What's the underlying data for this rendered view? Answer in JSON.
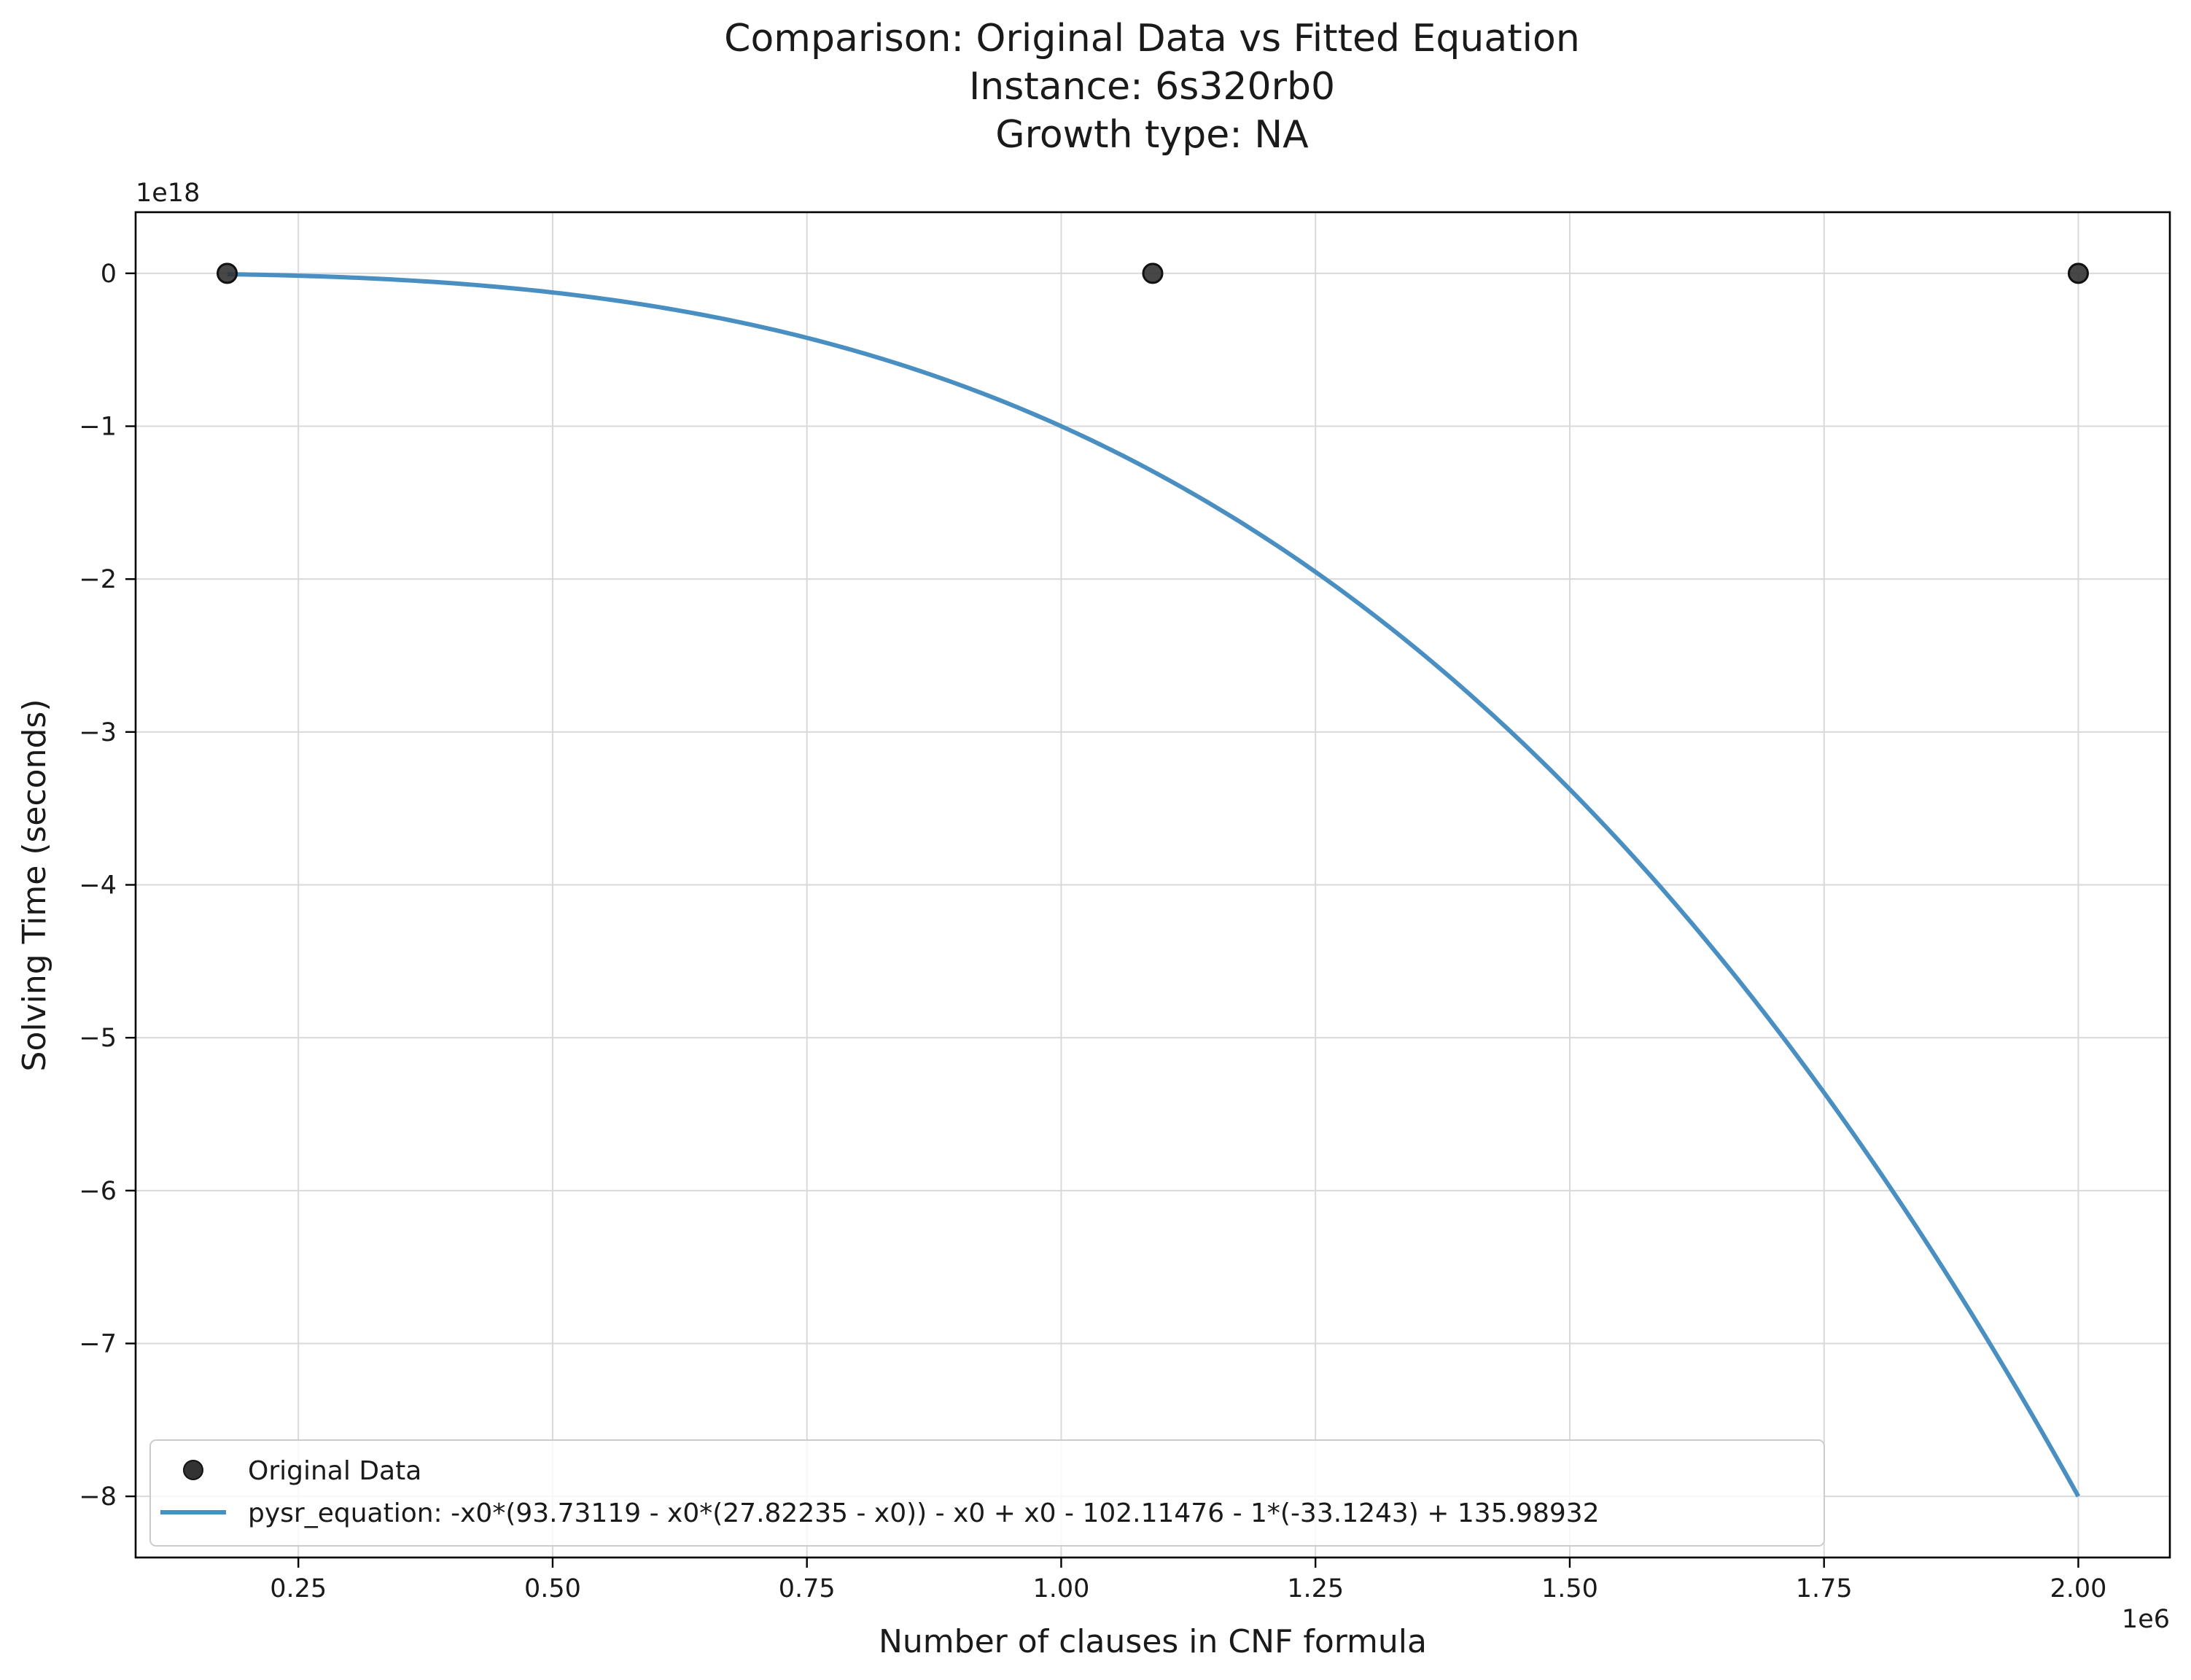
{
  "chart_data": {
    "type": "scatter",
    "title_lines": [
      "Comparison: Original Data vs Fitted Equation",
      "Instance: 6s320rb0",
      "Growth type: NA"
    ],
    "xlabel": "Number of clauses in CNF formula",
    "ylabel": "Solving Time (seconds)",
    "x_offset_label": "1e6",
    "y_offset_label": "1e18",
    "x_scale": 1000000,
    "y_scale": 1000000000000000000,
    "xlim": [
      0.09,
      2.09
    ],
    "ylim": [
      -8.4,
      0.4
    ],
    "xticks": [
      0.25,
      0.5,
      0.75,
      1.0,
      1.25,
      1.5,
      1.75,
      2.0
    ],
    "xtick_labels": [
      "0.25",
      "0.50",
      "0.75",
      "1.00",
      "1.25",
      "1.50",
      "1.75",
      "2.00"
    ],
    "yticks": [
      0,
      -1,
      -2,
      -3,
      -4,
      -5,
      -6,
      -7,
      -8
    ],
    "ytick_labels": [
      "0",
      "−1",
      "−2",
      "−3",
      "−4",
      "−5",
      "−6",
      "−7",
      "−8"
    ],
    "grid": true,
    "legend_position": "lower-left",
    "series": [
      {
        "name": "Original Data",
        "kind": "scatter",
        "color": "#333333",
        "x": [
          0.18,
          1.09,
          2.0
        ],
        "y": [
          0.0,
          0.0,
          0.0
        ]
      },
      {
        "name": "pysr_equation: -x0*(93.73119 - x0*(27.82235 - x0)) - x0 + x0 - 102.11476 - 1*(-33.1243) + 135.98932",
        "kind": "line",
        "color": "#4a8fc2",
        "equation": "-x^3",
        "x_range": [
          0.18,
          2.0
        ]
      }
    ]
  }
}
